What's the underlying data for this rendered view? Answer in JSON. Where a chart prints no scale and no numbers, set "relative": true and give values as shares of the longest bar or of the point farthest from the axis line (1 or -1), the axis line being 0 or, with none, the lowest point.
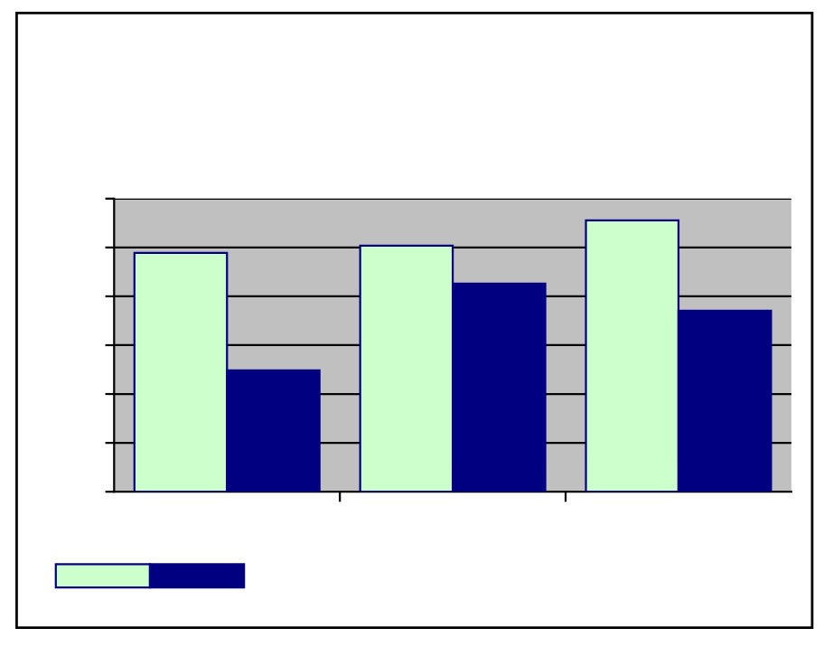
{
  "chart_data": {
    "type": "bar",
    "relative": true,
    "categories": [
      null,
      null,
      null
    ],
    "series": [
      {
        "color": "#ccffcc",
        "values": [
          0.88,
          0.907,
          1
        ]
      },
      {
        "color": "#000080",
        "values": [
          0.447,
          0.767,
          0.667
        ]
      }
    ],
    "grid": "y"
  }
}
